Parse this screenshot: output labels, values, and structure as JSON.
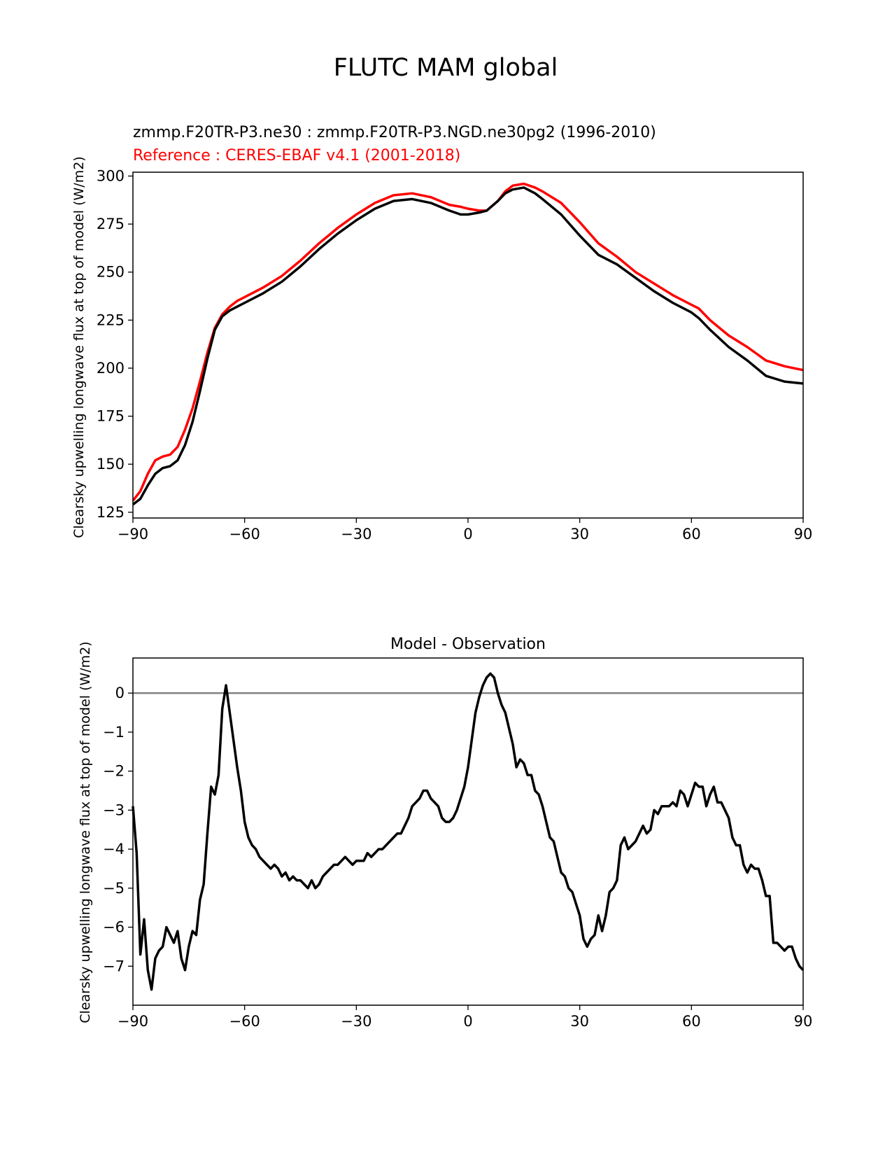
{
  "figure_title": "FLUTC MAM global",
  "colors": {
    "model": "#000000",
    "reference": "#ff0000",
    "zero_line": "#808080"
  },
  "chart_data": [
    {
      "type": "line",
      "title_line1": "zmmp.F20TR-P3.ne30 : zmmp.F20TR-P3.NGD.ne30pg2 (1996-2010)",
      "title_line2": "Reference : CERES-EBAF v4.1 (2001-2018)",
      "xlabel": "",
      "ylabel": "Clearsky upwelling longwave flux at top of model (W/m2)",
      "xlim": [
        -90,
        90
      ],
      "ylim": [
        122,
        302
      ],
      "xticks": [
        -90,
        -60,
        -30,
        0,
        30,
        60,
        90
      ],
      "xtick_labels": [
        "−90",
        "−60",
        "−30",
        "0",
        "30",
        "60",
        "90"
      ],
      "yticks": [
        125,
        150,
        175,
        200,
        225,
        250,
        275,
        300
      ],
      "ytick_labels": [
        "125",
        "150",
        "175",
        "200",
        "225",
        "250",
        "275",
        "300"
      ],
      "x": [
        -90,
        -88,
        -86,
        -84,
        -82,
        -80,
        -78,
        -76,
        -74,
        -72,
        -70,
        -68,
        -66,
        -64,
        -62,
        -60,
        -55,
        -50,
        -45,
        -40,
        -35,
        -30,
        -25,
        -20,
        -15,
        -10,
        -5,
        -2,
        0,
        3,
        5,
        8,
        10,
        12,
        15,
        18,
        20,
        25,
        30,
        35,
        40,
        45,
        50,
        55,
        60,
        62,
        65,
        70,
        75,
        80,
        85,
        90
      ],
      "series": [
        {
          "name": "Model",
          "values": [
            129,
            132,
            139,
            145,
            148,
            149,
            152,
            160,
            172,
            188,
            205,
            220,
            227,
            230,
            232,
            234,
            239,
            245,
            253,
            262,
            270,
            277,
            283,
            287,
            288,
            286,
            282,
            280,
            280,
            281,
            282,
            287,
            291,
            293,
            294,
            291,
            288,
            280,
            269,
            259,
            254,
            247,
            240,
            234,
            229,
            226,
            220,
            211,
            204,
            196,
            193,
            192
          ]
        },
        {
          "name": "Reference",
          "values": [
            131,
            136,
            145,
            152,
            154,
            155,
            159,
            168,
            179,
            193,
            208,
            221,
            228,
            232,
            235,
            237,
            242,
            248,
            256,
            265,
            273,
            280,
            286,
            290,
            291,
            289,
            285,
            284,
            283,
            282,
            282,
            287,
            292,
            295,
            296,
            294,
            292,
            286,
            276,
            265,
            258,
            250,
            244,
            238,
            233,
            231,
            225,
            217,
            211,
            204,
            201,
            199
          ]
        }
      ]
    },
    {
      "type": "line",
      "title": "Model - Observation",
      "xlabel": "",
      "ylabel": "Clearsky upwelling longwave flux at top of model (W/m2)",
      "xlim": [
        -90,
        90
      ],
      "ylim": [
        -8,
        0.9
      ],
      "xticks": [
        -90,
        -60,
        -30,
        0,
        30,
        60,
        90
      ],
      "xtick_labels": [
        "−90",
        "−60",
        "−30",
        "0",
        "30",
        "60",
        "90"
      ],
      "yticks": [
        -7,
        -6,
        -5,
        -4,
        -3,
        -2,
        -1,
        0
      ],
      "ytick_labels": [
        "−7",
        "−6",
        "−5",
        "−4",
        "−3",
        "−2",
        "−1",
        "0"
      ],
      "hline": 0,
      "x": [
        -90,
        -89,
        -88,
        -87,
        -86,
        -85,
        -84,
        -83,
        -82,
        -81,
        -80,
        -79,
        -78,
        -77,
        -76,
        -75,
        -74,
        -73,
        -72,
        -71,
        -70,
        -69,
        -68,
        -67,
        -66,
        -65,
        -64,
        -63,
        -62,
        -61,
        -60,
        -59,
        -58,
        -57,
        -56,
        -55,
        -54,
        -53,
        -52,
        -51,
        -50,
        -49,
        -48,
        -47,
        -46,
        -45,
        -44,
        -43,
        -42,
        -41,
        -40,
        -39,
        -38,
        -37,
        -36,
        -35,
        -34,
        -33,
        -32,
        -31,
        -30,
        -29,
        -28,
        -27,
        -26,
        -25,
        -24,
        -23,
        -22,
        -21,
        -20,
        -19,
        -18,
        -17,
        -16,
        -15,
        -14,
        -13,
        -12,
        -11,
        -10,
        -9,
        -8,
        -7,
        -6,
        -5,
        -4,
        -3,
        -2,
        -1,
        0,
        1,
        2,
        3,
        4,
        5,
        6,
        7,
        8,
        9,
        10,
        11,
        12,
        13,
        14,
        15,
        16,
        17,
        18,
        19,
        20,
        21,
        22,
        23,
        24,
        25,
        26,
        27,
        28,
        29,
        30,
        31,
        32,
        33,
        34,
        35,
        36,
        37,
        38,
        39,
        40,
        41,
        42,
        43,
        44,
        45,
        46,
        47,
        48,
        49,
        50,
        51,
        52,
        53,
        54,
        55,
        56,
        57,
        58,
        59,
        60,
        61,
        62,
        63,
        64,
        65,
        66,
        67,
        68,
        69,
        70,
        71,
        72,
        73,
        74,
        75,
        76,
        77,
        78,
        79,
        80,
        81,
        82,
        83,
        84,
        85,
        86,
        87,
        88,
        89,
        90
      ],
      "series": [
        {
          "name": "Model - Observation",
          "values": [
            -2.9,
            -4.1,
            -6.7,
            -5.8,
            -7.1,
            -7.6,
            -6.8,
            -6.6,
            -6.5,
            -6.0,
            -6.2,
            -6.4,
            -6.1,
            -6.8,
            -7.1,
            -6.5,
            -6.1,
            -6.2,
            -5.3,
            -4.9,
            -3.6,
            -2.4,
            -2.6,
            -2.1,
            -0.4,
            0.2,
            -0.5,
            -1.2,
            -1.9,
            -2.5,
            -3.3,
            -3.7,
            -3.9,
            -4.0,
            -4.2,
            -4.3,
            -4.4,
            -4.5,
            -4.4,
            -4.5,
            -4.7,
            -4.6,
            -4.8,
            -4.7,
            -4.8,
            -4.8,
            -4.9,
            -5.0,
            -4.8,
            -5.0,
            -4.9,
            -4.7,
            -4.6,
            -4.5,
            -4.4,
            -4.4,
            -4.3,
            -4.2,
            -4.3,
            -4.4,
            -4.3,
            -4.3,
            -4.3,
            -4.1,
            -4.2,
            -4.1,
            -4.0,
            -4.0,
            -3.9,
            -3.8,
            -3.7,
            -3.6,
            -3.6,
            -3.4,
            -3.2,
            -2.9,
            -2.8,
            -2.7,
            -2.5,
            -2.5,
            -2.7,
            -2.8,
            -2.9,
            -3.2,
            -3.3,
            -3.3,
            -3.2,
            -3.0,
            -2.7,
            -2.4,
            -1.9,
            -1.2,
            -0.5,
            -0.1,
            0.2,
            0.4,
            0.5,
            0.4,
            0.0,
            -0.3,
            -0.5,
            -0.9,
            -1.3,
            -1.9,
            -1.7,
            -1.8,
            -2.1,
            -2.1,
            -2.5,
            -2.6,
            -2.9,
            -3.3,
            -3.7,
            -3.8,
            -4.2,
            -4.6,
            -4.7,
            -5.0,
            -5.1,
            -5.4,
            -5.7,
            -6.3,
            -6.5,
            -6.3,
            -6.2,
            -5.7,
            -6.1,
            -5.7,
            -5.1,
            -5.0,
            -4.8,
            -3.9,
            -3.7,
            -4.0,
            -3.9,
            -3.8,
            -3.6,
            -3.4,
            -3.6,
            -3.5,
            -3.0,
            -3.1,
            -2.9,
            -2.9,
            -2.9,
            -2.8,
            -2.9,
            -2.5,
            -2.6,
            -2.9,
            -2.6,
            -2.3,
            -2.4,
            -2.4,
            -2.9,
            -2.6,
            -2.4,
            -2.8,
            -2.8,
            -3.0,
            -3.2,
            -3.7,
            -3.9,
            -3.9,
            -4.4,
            -4.6,
            -4.4,
            -4.5,
            -4.5,
            -4.8,
            -5.2,
            -5.2,
            -6.4,
            -6.4,
            -6.5,
            -6.6,
            -6.5,
            -6.5,
            -6.8,
            -7.0,
            -7.1
          ]
        }
      ]
    }
  ]
}
